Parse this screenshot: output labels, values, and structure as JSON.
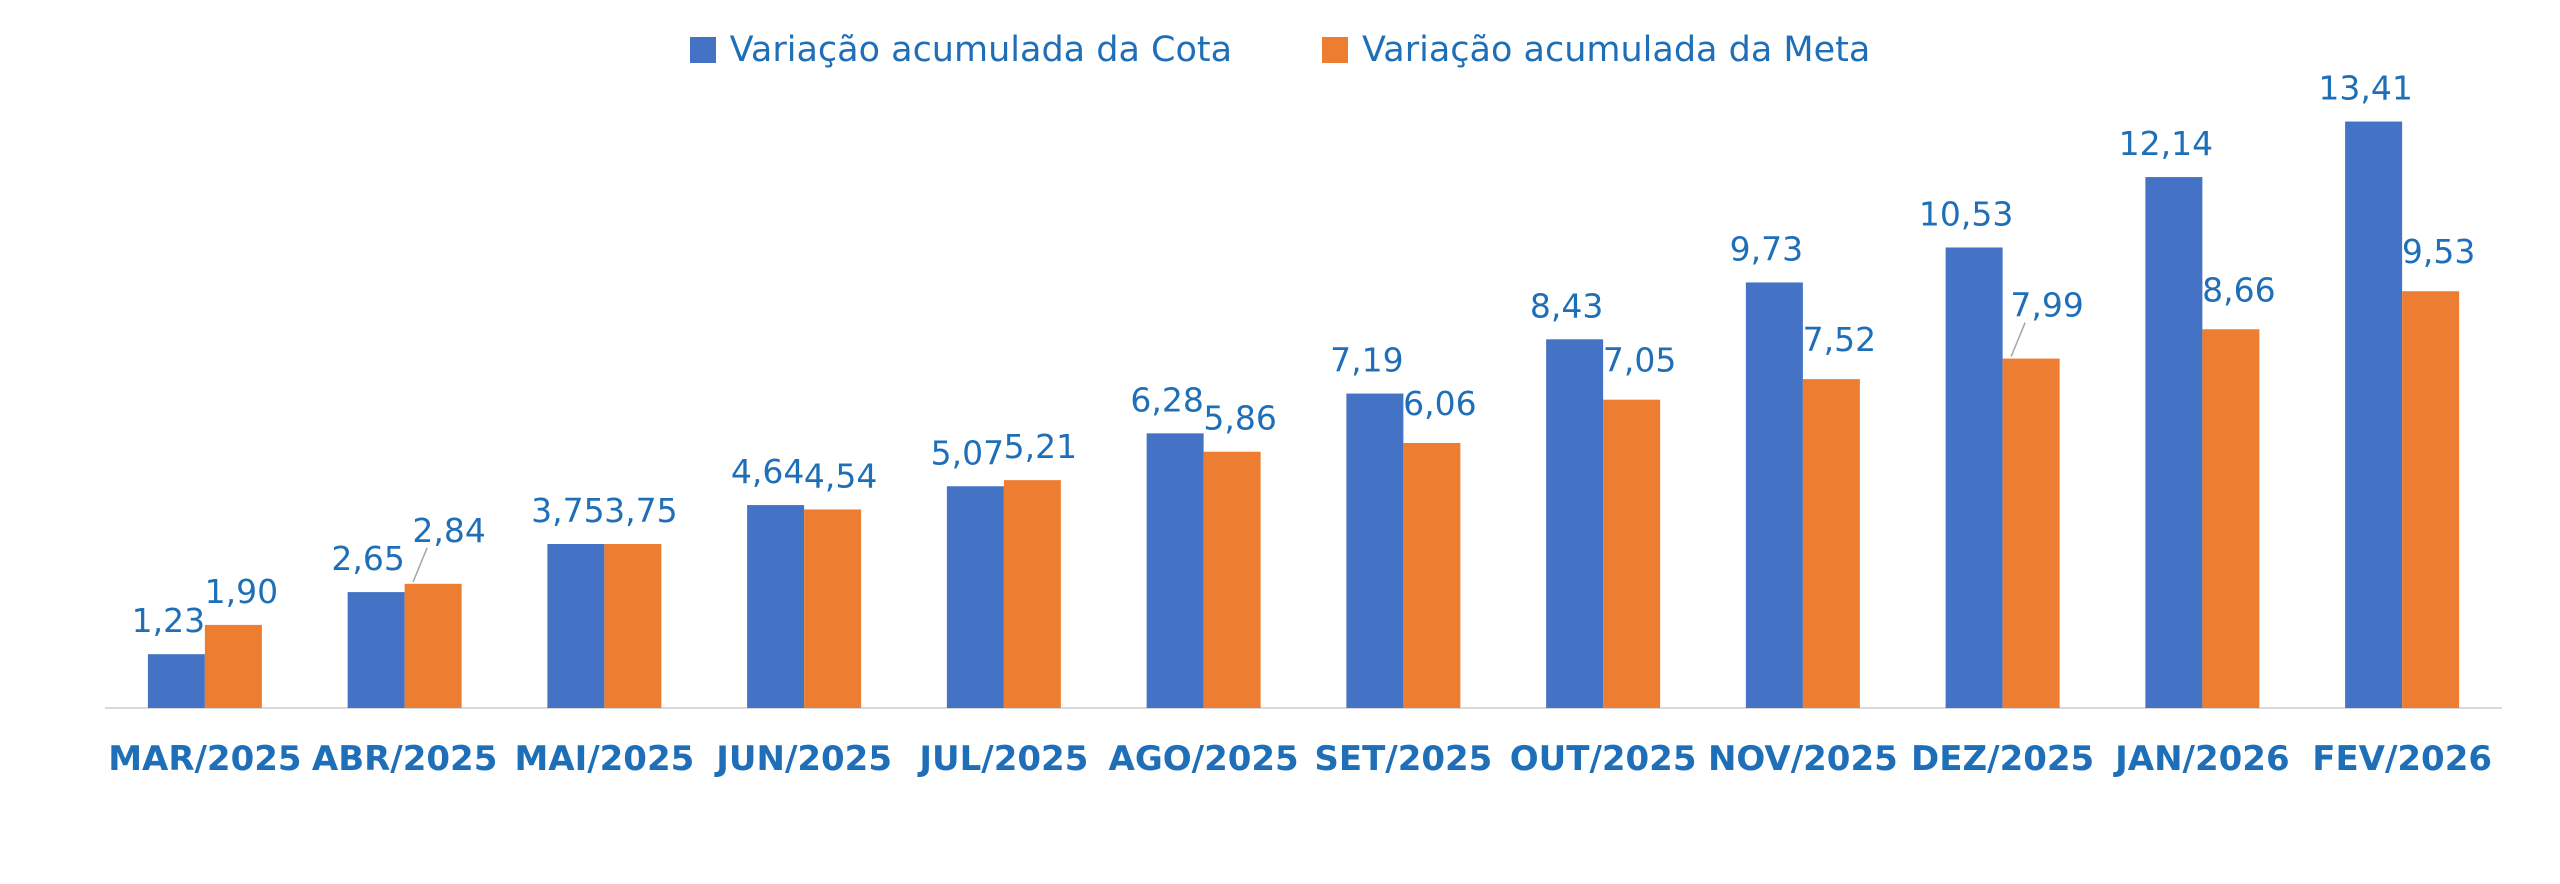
{
  "colors": {
    "cota": "#4472c4",
    "meta": "#ed7d31",
    "label_text": "#1f6fb8",
    "axis_line": "#d9d9d9",
    "leader_line": "#a6a6a6"
  },
  "chart_data": {
    "type": "bar",
    "title": "",
    "xlabel": "",
    "ylabel": "",
    "ylim": [
      0,
      15
    ],
    "grid": false,
    "legend_position": "top",
    "categories": [
      "MAR/2025",
      "ABR/2025",
      "MAI/2025",
      "JUN/2025",
      "JUL/2025",
      "AGO/2025",
      "SET/2025",
      "OUT/2025",
      "NOV/2025",
      "DEZ/2025",
      "JAN/2026",
      "FEV/2026"
    ],
    "series": [
      {
        "name": "Variação acumulada da Cota",
        "values": [
          1.23,
          2.65,
          3.75,
          4.64,
          5.07,
          6.28,
          7.19,
          8.43,
          9.73,
          10.53,
          12.14,
          13.41
        ],
        "labels": [
          "1,23",
          "2,65",
          "3,75",
          "4,64",
          "5,07",
          "6,28",
          "7,19",
          "8,43",
          "9,73",
          "10,53",
          "12,14",
          "13,41"
        ]
      },
      {
        "name": "Variação acumulada da Meta",
        "values": [
          1.9,
          2.84,
          3.75,
          4.54,
          5.21,
          5.86,
          6.06,
          7.05,
          7.52,
          7.99,
          8.66,
          9.53
        ],
        "labels": [
          "1,90",
          "2,84",
          "3,75",
          "4,54",
          "5,21",
          "5,86",
          "6,06",
          "7,05",
          "7,52",
          "7,99",
          "8,66",
          "9,53"
        ]
      }
    ]
  }
}
